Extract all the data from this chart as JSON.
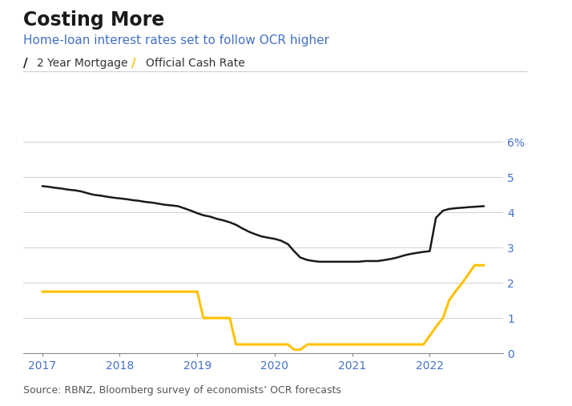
{
  "title": "Costing More",
  "subtitle": "Home-loan interest rates set to follow OCR higher",
  "source": "Source: RBNZ, Bloomberg survey of economists’ OCR forecasts",
  "legend_labels": [
    "2 Year Mortgage",
    "Official Cash Rate"
  ],
  "mortgage_color": "#1a1a1a",
  "ocr_color": "#FFC200",
  "background_color": "#ffffff",
  "title_fontsize": 17,
  "subtitle_fontsize": 11,
  "legend_fontsize": 10,
  "source_fontsize": 9,
  "tick_color": "#4472C4",
  "ylim": [
    0,
    6
  ],
  "yticks": [
    0,
    1,
    2,
    3,
    4,
    5,
    6
  ],
  "ytick_labels": [
    "0",
    "1",
    "2",
    "3",
    "4",
    "5",
    "6%"
  ],
  "xtick_positions": [
    2017,
    2018,
    2019,
    2020,
    2021,
    2022
  ],
  "xtick_labels": [
    "2017",
    "2018",
    "2019",
    "2020",
    "2021",
    "2022"
  ],
  "xlim": [
    2016.75,
    2022.95
  ],
  "mortgage_x": [
    2017.0,
    2017.08,
    2017.17,
    2017.25,
    2017.33,
    2017.42,
    2017.5,
    2017.58,
    2017.67,
    2017.75,
    2017.83,
    2017.92,
    2018.0,
    2018.08,
    2018.17,
    2018.25,
    2018.33,
    2018.42,
    2018.5,
    2018.58,
    2018.67,
    2018.75,
    2018.83,
    2018.92,
    2019.0,
    2019.08,
    2019.17,
    2019.25,
    2019.33,
    2019.42,
    2019.5,
    2019.58,
    2019.67,
    2019.75,
    2019.83,
    2019.92,
    2020.0,
    2020.08,
    2020.17,
    2020.25,
    2020.33,
    2020.42,
    2020.5,
    2020.58,
    2020.67,
    2020.75,
    2020.83,
    2020.92,
    2021.0,
    2021.08,
    2021.17,
    2021.25,
    2021.33,
    2021.42,
    2021.5,
    2021.58,
    2021.67,
    2021.75,
    2021.83,
    2021.92,
    2022.0,
    2022.08,
    2022.17,
    2022.25,
    2022.33,
    2022.5,
    2022.7
  ],
  "mortgage_y": [
    4.75,
    4.73,
    4.7,
    4.68,
    4.65,
    4.63,
    4.6,
    4.55,
    4.5,
    4.48,
    4.45,
    4.42,
    4.4,
    4.38,
    4.35,
    4.33,
    4.3,
    4.28,
    4.25,
    4.22,
    4.2,
    4.18,
    4.12,
    4.05,
    3.98,
    3.92,
    3.88,
    3.82,
    3.78,
    3.72,
    3.65,
    3.55,
    3.45,
    3.38,
    3.32,
    3.28,
    3.25,
    3.2,
    3.1,
    2.9,
    2.72,
    2.65,
    2.62,
    2.6,
    2.6,
    2.6,
    2.6,
    2.6,
    2.6,
    2.6,
    2.62,
    2.62,
    2.62,
    2.65,
    2.68,
    2.72,
    2.78,
    2.82,
    2.85,
    2.88,
    2.9,
    3.85,
    4.05,
    4.1,
    4.12,
    4.15,
    4.18
  ],
  "ocr_x": [
    2017.0,
    2019.0,
    2019.08,
    2019.42,
    2019.5,
    2020.17,
    2020.25,
    2020.33,
    2020.42,
    2021.92,
    2022.0,
    2022.08,
    2022.17,
    2022.25,
    2022.33,
    2022.42,
    2022.5,
    2022.58,
    2022.7
  ],
  "ocr_y": [
    1.75,
    1.75,
    1.0,
    1.0,
    0.25,
    0.25,
    0.1,
    0.1,
    0.25,
    0.25,
    0.5,
    0.75,
    1.0,
    1.5,
    1.75,
    2.0,
    2.25,
    2.5,
    2.5
  ]
}
